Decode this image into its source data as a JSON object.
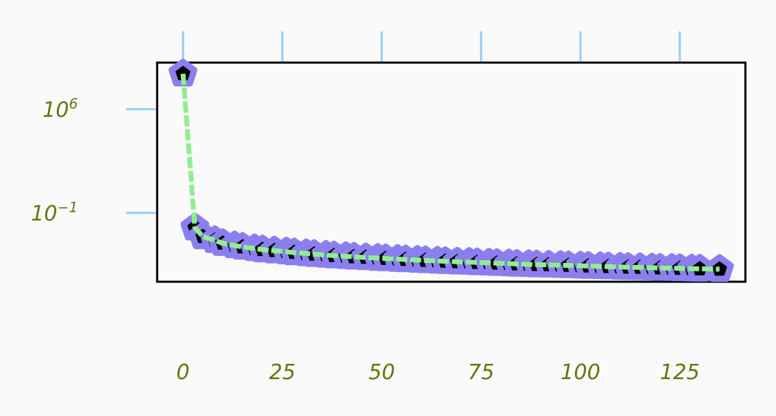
{
  "chart_data": {
    "type": "line",
    "title": "",
    "xlabel": "",
    "ylabel": "",
    "x_ticks": [
      0,
      25,
      50,
      75,
      100,
      125
    ],
    "x_tick_labels": [
      "0",
      "25",
      "50",
      "75",
      "100",
      "125"
    ],
    "xlim": [
      -6.5,
      141.5
    ],
    "y_scale": "log",
    "y_ticks": [
      1000000.0,
      0.1
    ],
    "y_tick_labels": [
      {
        "base": "10",
        "exp": "6"
      },
      {
        "base": "10",
        "exp": "−1"
      }
    ],
    "ylim_log10": [
      -5.65,
      9.15
    ],
    "grid": false,
    "legend": "none",
    "colors": {
      "line": "#90ee90",
      "marker_edge": "#8b7ff0",
      "marker_face": "#000000",
      "tick_mark": "#90cdf9",
      "tick_label": "#6b7312",
      "frame": "#000000",
      "background": "#fafafa"
    },
    "marker": "pentagon",
    "series": [
      {
        "x": [
          0,
          3,
          5,
          8,
          10,
          13,
          15,
          18,
          20,
          23,
          26,
          28,
          31,
          33,
          36,
          38,
          41,
          43,
          46,
          49,
          51,
          54,
          56,
          59,
          61,
          64,
          66,
          69,
          72,
          74,
          77,
          79,
          82,
          84,
          87,
          89,
          92,
          95,
          97,
          100,
          102,
          105,
          107,
          110,
          112,
          115,
          118,
          120,
          123,
          125,
          128,
          130,
          135
        ],
        "log10_y": [
          8.4,
          -2.0,
          -2.6,
          -2.85,
          -3.05,
          -3.2,
          -3.3,
          -3.4,
          -3.48,
          -3.55,
          -3.62,
          -3.68,
          -3.74,
          -3.79,
          -3.84,
          -3.89,
          -3.93,
          -3.97,
          -4.01,
          -4.05,
          -4.08,
          -4.12,
          -4.15,
          -4.18,
          -4.21,
          -4.24,
          -4.27,
          -4.3,
          -4.32,
          -4.35,
          -4.37,
          -4.4,
          -4.42,
          -4.45,
          -4.47,
          -4.49,
          -4.51,
          -4.53,
          -4.55,
          -4.57,
          -4.59,
          -4.61,
          -4.63,
          -4.65,
          -4.67,
          -4.68,
          -4.7,
          -4.72,
          -4.73,
          -4.75,
          -4.77,
          -4.78,
          -4.8
        ]
      }
    ]
  }
}
